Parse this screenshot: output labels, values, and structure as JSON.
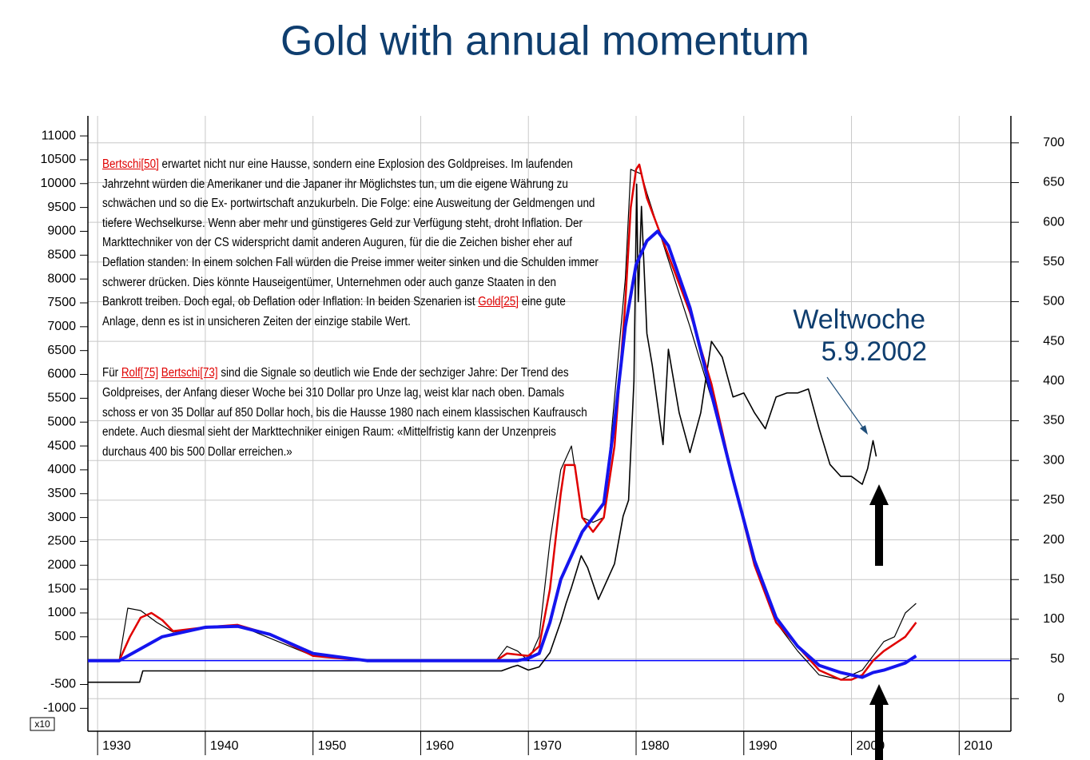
{
  "chart_data": {
    "type": "line",
    "title": "Gold with annual momentum",
    "y_unit_label": "x10",
    "xlim": [
      1929.1,
      2014.8
    ],
    "xticks": [
      1930,
      1940,
      1950,
      1960,
      1970,
      1980,
      1990,
      2000,
      2010
    ],
    "ylim": [
      -1480,
      11420
    ],
    "yticks": [
      11000,
      10500,
      10000,
      9500,
      9000,
      8500,
      8000,
      7500,
      7000,
      6500,
      6000,
      5500,
      5000,
      4500,
      4000,
      3500,
      3000,
      2500,
      2000,
      1500,
      1000,
      500,
      -500,
      -1000
    ],
    "y2lim": [
      -41,
      734
    ],
    "y2ticks": [
      700,
      650,
      600,
      550,
      500,
      450,
      400,
      350,
      300,
      250,
      200,
      150,
      100,
      50,
      0
    ],
    "grid": true,
    "reference_line": {
      "value": 0,
      "color": "#0000ff"
    },
    "series": [
      {
        "color": "#000000",
        "axis": "y2",
        "width": 1.6,
        "x": [
          1929.1,
          1933.9,
          1934.2,
          1967.5,
          1968.5,
          1969,
          1970,
          1971,
          1972,
          1973,
          1973.5,
          1974,
          1974.9,
          1975.5,
          1976.5,
          1977,
          1978,
          1978.8,
          1979.3,
          1979.8,
          1980.05,
          1980.2,
          1980.5,
          1981,
          1981.5,
          1982.5,
          1983,
          1984,
          1985,
          1986,
          1987,
          1988,
          1989,
          1990,
          1991,
          1992,
          1993,
          1994,
          1995,
          1996,
          1997,
          1998,
          1999,
          2000,
          2001,
          2001.5,
          2002,
          2002.3
        ],
        "values": [
          20.67,
          20.67,
          35,
          35,
          40,
          42,
          36,
          40,
          58,
          97,
          120,
          140,
          180,
          165,
          125,
          140,
          170,
          230,
          250,
          400,
          648,
          500,
          620,
          460,
          420,
          320,
          440,
          360,
          310,
          360,
          450,
          430,
          380,
          385,
          360,
          340,
          380,
          385,
          385,
          390,
          340,
          295,
          280,
          280,
          270,
          290,
          325,
          305
        ]
      },
      {
        "color": "#000000",
        "width": 1.2,
        "x": [
          1929.1,
          1932,
          1932.8,
          1934,
          1935.5,
          1937,
          1943,
          1950,
          1955,
          1967,
          1968,
          1969,
          1970,
          1971,
          1972,
          1973,
          1974,
          1975,
          1976,
          1977,
          1978,
          1979,
          1979.5,
          1980.5,
          1981,
          1983,
          1985,
          1987,
          1989,
          1991,
          1993,
          1995,
          1997,
          1999,
          2000,
          2001,
          2002,
          2003,
          2004,
          2005,
          2006
        ],
        "values": [
          0,
          0,
          1100,
          1050,
          800,
          600,
          750,
          100,
          0,
          0,
          300,
          200,
          0,
          500,
          2500,
          4000,
          4500,
          3000,
          2900,
          3000,
          5500,
          8000,
          10300,
          10200,
          9800,
          8400,
          7000,
          5500,
          3800,
          2000,
          800,
          200,
          -300,
          -400,
          -300,
          -200,
          100,
          400,
          500,
          1000,
          1200
        ]
      },
      {
        "color": "#e00000",
        "width": 2.5,
        "x": [
          1929.1,
          1932,
          1933,
          1934,
          1935,
          1936,
          1937,
          1940,
          1943,
          1946,
          1950,
          1955,
          1967,
          1968,
          1970,
          1971,
          1972,
          1973,
          1973.4,
          1974.3,
          1975,
          1976,
          1977,
          1978,
          1979,
          1979.5,
          1980,
          1980.3,
          1981,
          1983,
          1985,
          1987,
          1989,
          1991,
          1993,
          1995,
          1997,
          1999,
          2000,
          2001,
          2002,
          2003,
          2005,
          2006
        ],
        "values": [
          0,
          0,
          500,
          900,
          1000,
          850,
          620,
          700,
          750,
          550,
          100,
          0,
          0,
          150,
          100,
          300,
          1500,
          3500,
          4100,
          4100,
          3000,
          2700,
          3000,
          4500,
          7500,
          9500,
          10300,
          10400,
          9700,
          8500,
          7300,
          5800,
          3800,
          2000,
          800,
          300,
          -200,
          -400,
          -400,
          -300,
          0,
          200,
          500,
          800
        ]
      },
      {
        "color": "#1515ee",
        "width": 4,
        "x": [
          1929.1,
          1932,
          1936,
          1940,
          1943,
          1946,
          1950,
          1955,
          1967,
          1969,
          1970,
          1971,
          1972,
          1973,
          1975,
          1977,
          1978,
          1979,
          1980,
          1981,
          1982,
          1983,
          1985,
          1987,
          1989,
          1991,
          1993,
          1995,
          1997,
          1999,
          2000,
          2001,
          2002,
          2003,
          2005,
          2006
        ],
        "values": [
          0,
          0,
          500,
          700,
          720,
          550,
          150,
          0,
          0,
          0,
          50,
          150,
          800,
          1700,
          2700,
          3300,
          5000,
          7000,
          8300,
          8800,
          9000,
          8700,
          7400,
          5600,
          3800,
          2100,
          900,
          300,
          -100,
          -250,
          -300,
          -350,
          -250,
          -200,
          -50,
          100
        ]
      }
    ],
    "annotation": [
      "Weltwoche",
      "5.9.2002"
    ],
    "article": [
      [
        {
          "text": "Bertschi[50]",
          "link": true
        },
        {
          "text": " erwartet nicht nur eine Hausse, sondern eine Explosion des Goldpreises. Im laufenden Jahrzehnt würden die Amerikaner und die Japaner ihr Möglichstes tun, um die eigene Währung zu schwächen und so die Ex- portwirtschaft anzukurbeln. Die Folge: eine Ausweitung der Geldmengen und tiefere Wechselkurse. Wenn aber mehr und günstigeres Geld zur Verfügung steht, droht Inflation. Der Markttechniker von der CS widerspricht damit anderen Auguren, für die die Zeichen bisher eher auf Deflation standen: In einem solchen Fall würden die Preise immer weiter sinken und die Schulden immer schwerer drücken. Dies könnte Hauseigentümer, Unternehmen oder auch ganze Staaten in den Bankrott treiben. Doch egal, ob Deflation oder Inflation: In beiden Szenarien ist "
        },
        {
          "text": "Gold[25]",
          "link": true
        },
        {
          "text": " eine gute Anlage, denn es ist in unsicheren Zeiten der einzige stabile Wert."
        }
      ],
      [
        {
          "text": "Für "
        },
        {
          "text": "Rolf[75]",
          "link": true
        },
        {
          "text": " "
        },
        {
          "text": "Bertschi[73]",
          "link": true
        },
        {
          "text": " sind die Signale so deutlich wie Ende der sechziger Jahre: Der Trend des Goldpreises, der Anfang dieser Woche bei 310 Dollar pro Unze lag, weist klar nach oben. Damals schoss er von 35 Dollar auf 850 Dollar hoch, bis die Hausse 1980 nach einem klassischen Kaufrausch endete. Auch diesmal sieht der Markttechniker einigen Raum: «Mittelfristig kann der Unzenpreis durchaus 400 bis 500 Dollar erreichen.»"
        }
      ]
    ]
  }
}
